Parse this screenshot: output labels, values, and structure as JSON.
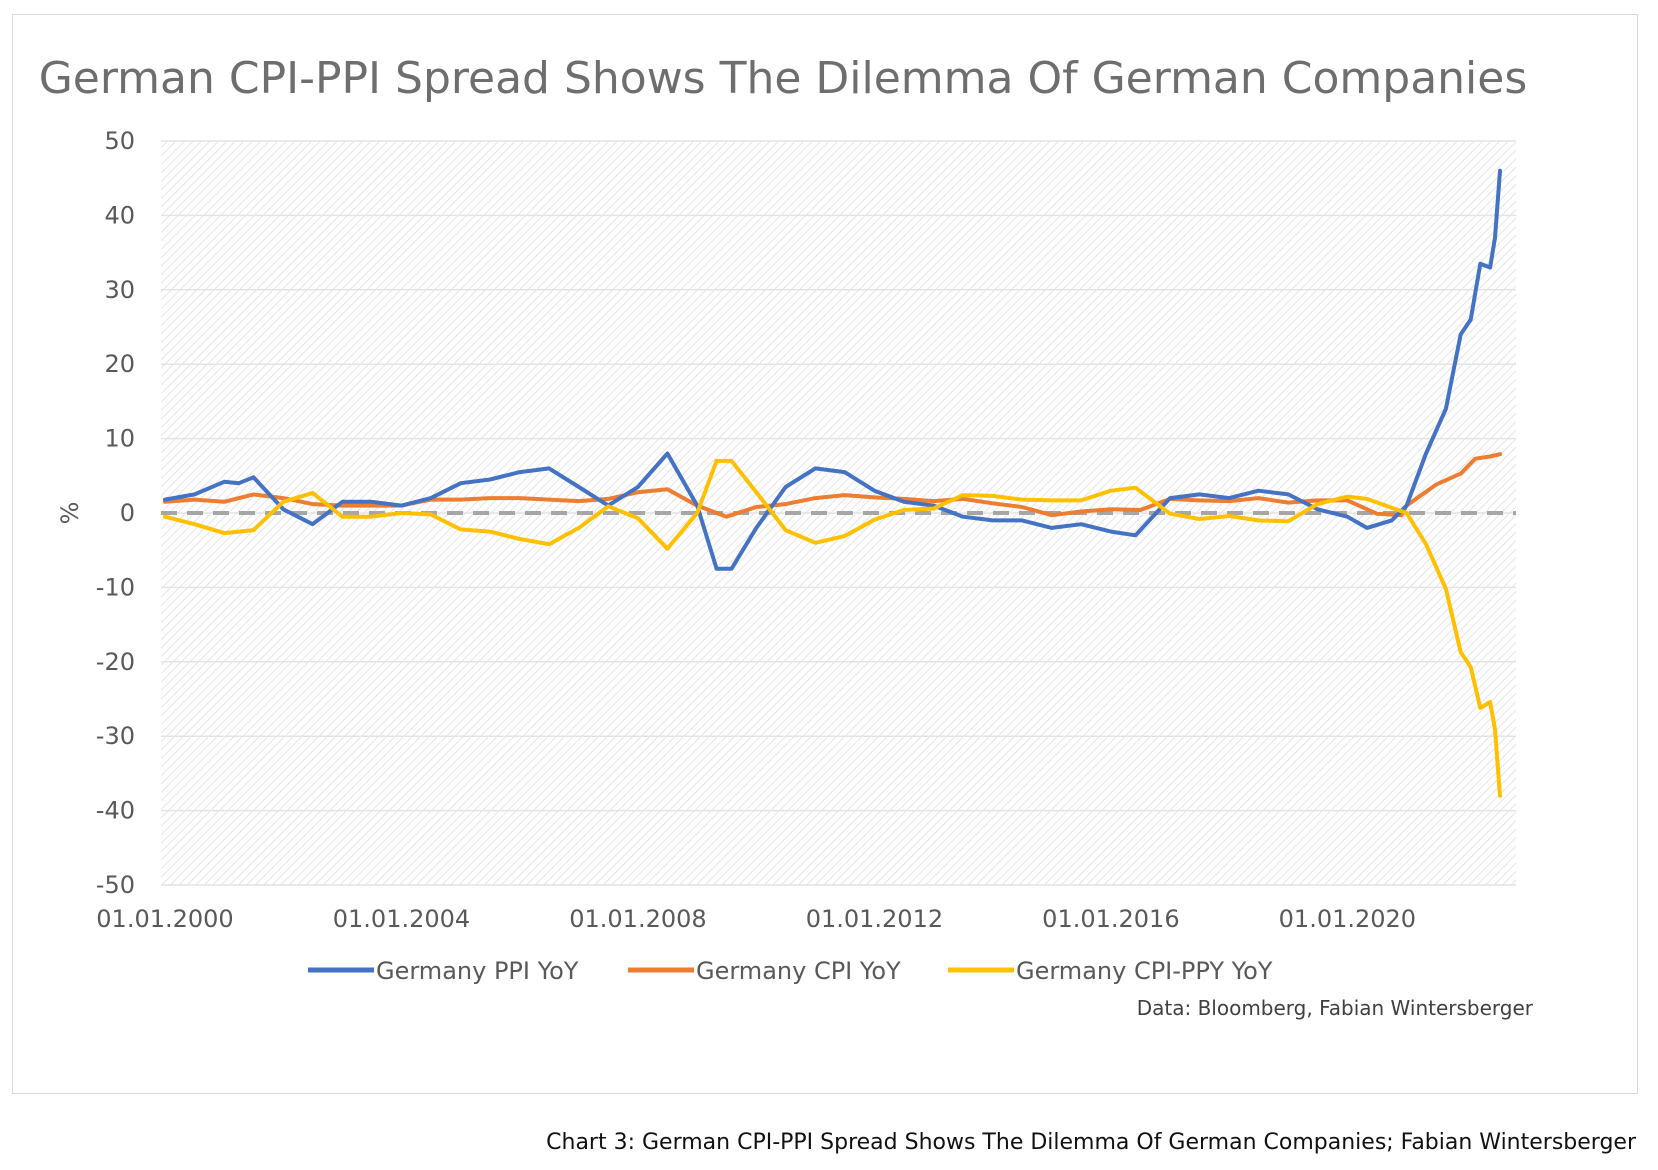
{
  "chart_data": {
    "type": "line",
    "title": "German CPI-PPI Spread Shows The Dilemma Of German Companies",
    "ylabel": "%",
    "xlabel": "",
    "ylim": [
      -50,
      50
    ],
    "yticks": [
      50,
      40,
      30,
      20,
      10,
      0,
      -10,
      -20,
      -30,
      -40,
      -50
    ],
    "xlim": [
      "2000-01-01",
      "2022-08-01"
    ],
    "xtick_labels": [
      "01.01.2000",
      "01.01.2004",
      "01.01.2008",
      "01.01.2012",
      "01.01.2016",
      "01.01.2020"
    ],
    "xtick_dates": [
      "2000-01-01",
      "2004-01-01",
      "2008-01-01",
      "2012-01-01",
      "2016-01-01",
      "2020-01-01"
    ],
    "grid": "hatched background, horizontal gridlines",
    "zero_line": "dashed grey",
    "legend_position": "bottom",
    "source": "Data: Bloomberg, Fabian Wintersberger",
    "series": [
      {
        "name": "Germany PPI YoY",
        "color": "#4472C4",
        "points": [
          [
            "2000-01-01",
            1.8
          ],
          [
            "2000-07-01",
            2.5
          ],
          [
            "2001-01-01",
            4.2
          ],
          [
            "2001-04-01",
            4.0
          ],
          [
            "2001-07-01",
            4.8
          ],
          [
            "2002-01-01",
            0.5
          ],
          [
            "2002-07-01",
            -1.5
          ],
          [
            "2003-01-01",
            1.5
          ],
          [
            "2003-07-01",
            1.5
          ],
          [
            "2004-01-01",
            1.0
          ],
          [
            "2004-07-01",
            2.0
          ],
          [
            "2005-01-01",
            4.0
          ],
          [
            "2005-07-01",
            4.5
          ],
          [
            "2006-01-01",
            5.5
          ],
          [
            "2006-07-01",
            6.0
          ],
          [
            "2007-01-01",
            3.5
          ],
          [
            "2007-07-01",
            1.0
          ],
          [
            "2008-01-01",
            3.5
          ],
          [
            "2008-07-01",
            8.0
          ],
          [
            "2009-01-01",
            1.0
          ],
          [
            "2009-05-01",
            -7.5
          ],
          [
            "2009-08-01",
            -7.5
          ],
          [
            "2010-01-01",
            -2.0
          ],
          [
            "2010-07-01",
            3.5
          ],
          [
            "2011-01-01",
            6.0
          ],
          [
            "2011-07-01",
            5.5
          ],
          [
            "2012-01-01",
            3.0
          ],
          [
            "2012-07-01",
            1.5
          ],
          [
            "2013-01-01",
            1.0
          ],
          [
            "2013-07-01",
            -0.5
          ],
          [
            "2014-01-01",
            -1.0
          ],
          [
            "2014-07-01",
            -1.0
          ],
          [
            "2015-01-01",
            -2.0
          ],
          [
            "2015-07-01",
            -1.5
          ],
          [
            "2016-01-01",
            -2.5
          ],
          [
            "2016-06-01",
            -3.0
          ],
          [
            "2017-01-01",
            2.0
          ],
          [
            "2017-07-01",
            2.5
          ],
          [
            "2018-01-01",
            2.0
          ],
          [
            "2018-07-01",
            3.0
          ],
          [
            "2019-01-01",
            2.5
          ],
          [
            "2019-07-01",
            0.5
          ],
          [
            "2020-01-01",
            -0.5
          ],
          [
            "2020-05-01",
            -2.0
          ],
          [
            "2020-10-01",
            -1.0
          ],
          [
            "2021-01-01",
            1.0
          ],
          [
            "2021-05-01",
            8.0
          ],
          [
            "2021-09-01",
            14.0
          ],
          [
            "2021-12-01",
            24.0
          ],
          [
            "2022-02-01",
            26.0
          ],
          [
            "2022-04-01",
            33.5
          ],
          [
            "2022-06-01",
            33.0
          ],
          [
            "2022-07-01",
            37.0
          ],
          [
            "2022-08-01",
            46.0
          ]
        ]
      },
      {
        "name": "Germany CPI YoY",
        "color": "#ED7D31",
        "points": [
          [
            "2000-01-01",
            1.5
          ],
          [
            "2000-07-01",
            1.8
          ],
          [
            "2001-01-01",
            1.5
          ],
          [
            "2001-07-01",
            2.5
          ],
          [
            "2002-01-01",
            2.0
          ],
          [
            "2002-07-01",
            1.2
          ],
          [
            "2003-01-01",
            1.0
          ],
          [
            "2003-07-01",
            1.0
          ],
          [
            "2004-01-01",
            1.0
          ],
          [
            "2004-07-01",
            1.8
          ],
          [
            "2005-01-01",
            1.8
          ],
          [
            "2005-07-01",
            2.0
          ],
          [
            "2006-01-01",
            2.0
          ],
          [
            "2006-07-01",
            1.8
          ],
          [
            "2007-01-01",
            1.6
          ],
          [
            "2007-07-01",
            1.9
          ],
          [
            "2008-01-01",
            2.8
          ],
          [
            "2008-07-01",
            3.2
          ],
          [
            "2009-01-01",
            1.0
          ],
          [
            "2009-07-01",
            -0.5
          ],
          [
            "2010-01-01",
            0.8
          ],
          [
            "2010-07-01",
            1.2
          ],
          [
            "2011-01-01",
            2.0
          ],
          [
            "2011-07-01",
            2.4
          ],
          [
            "2012-01-01",
            2.1
          ],
          [
            "2012-07-01",
            1.9
          ],
          [
            "2013-01-01",
            1.6
          ],
          [
            "2013-07-01",
            1.9
          ],
          [
            "2014-01-01",
            1.3
          ],
          [
            "2014-07-01",
            0.8
          ],
          [
            "2015-01-01",
            -0.3
          ],
          [
            "2015-07-01",
            0.2
          ],
          [
            "2016-01-01",
            0.5
          ],
          [
            "2016-07-01",
            0.4
          ],
          [
            "2017-01-01",
            1.9
          ],
          [
            "2017-07-01",
            1.7
          ],
          [
            "2018-01-01",
            1.6
          ],
          [
            "2018-07-01",
            2.0
          ],
          [
            "2019-01-01",
            1.4
          ],
          [
            "2019-07-01",
            1.7
          ],
          [
            "2020-01-01",
            1.7
          ],
          [
            "2020-07-01",
            -0.1
          ],
          [
            "2020-12-01",
            -0.3
          ],
          [
            "2021-01-01",
            1.0
          ],
          [
            "2021-07-01",
            3.8
          ],
          [
            "2021-12-01",
            5.3
          ],
          [
            "2022-03-01",
            7.3
          ],
          [
            "2022-06-01",
            7.6
          ],
          [
            "2022-08-01",
            7.9
          ]
        ]
      },
      {
        "name": "Germany CPI-PPY YoY",
        "color": "#FFC000",
        "points": [
          [
            "2000-01-01",
            -0.5
          ],
          [
            "2000-07-01",
            -1.5
          ],
          [
            "2001-01-01",
            -2.7
          ],
          [
            "2001-04-01",
            -2.5
          ],
          [
            "2001-07-01",
            -2.3
          ],
          [
            "2002-01-01",
            1.5
          ],
          [
            "2002-07-01",
            2.7
          ],
          [
            "2003-01-01",
            -0.5
          ],
          [
            "2003-07-01",
            -0.5
          ],
          [
            "2004-01-01",
            0.0
          ],
          [
            "2004-07-01",
            -0.2
          ],
          [
            "2005-01-01",
            -2.2
          ],
          [
            "2005-07-01",
            -2.5
          ],
          [
            "2006-01-01",
            -3.5
          ],
          [
            "2006-07-01",
            -4.2
          ],
          [
            "2007-01-01",
            -2.0
          ],
          [
            "2007-07-01",
            0.9
          ],
          [
            "2008-01-01",
            -0.7
          ],
          [
            "2008-07-01",
            -4.8
          ],
          [
            "2009-01-01",
            0.0
          ],
          [
            "2009-05-01",
            7.0
          ],
          [
            "2009-08-01",
            7.0
          ],
          [
            "2010-01-01",
            2.8
          ],
          [
            "2010-07-01",
            -2.3
          ],
          [
            "2011-01-01",
            -4.0
          ],
          [
            "2011-07-01",
            -3.1
          ],
          [
            "2012-01-01",
            -0.9
          ],
          [
            "2012-07-01",
            0.4
          ],
          [
            "2013-01-01",
            0.6
          ],
          [
            "2013-07-01",
            2.4
          ],
          [
            "2014-01-01",
            2.3
          ],
          [
            "2014-07-01",
            1.8
          ],
          [
            "2015-01-01",
            1.7
          ],
          [
            "2015-07-01",
            1.7
          ],
          [
            "2016-01-01",
            3.0
          ],
          [
            "2016-06-01",
            3.4
          ],
          [
            "2017-01-01",
            -0.1
          ],
          [
            "2017-07-01",
            -0.8
          ],
          [
            "2018-01-01",
            -0.4
          ],
          [
            "2018-07-01",
            -1.0
          ],
          [
            "2019-01-01",
            -1.1
          ],
          [
            "2019-07-01",
            1.2
          ],
          [
            "2020-01-01",
            2.2
          ],
          [
            "2020-05-01",
            1.9
          ],
          [
            "2020-10-01",
            0.7
          ],
          [
            "2021-01-01",
            0.0
          ],
          [
            "2021-05-01",
            -4.2
          ],
          [
            "2021-09-01",
            -10.2
          ],
          [
            "2021-12-01",
            -18.7
          ],
          [
            "2022-02-01",
            -20.7
          ],
          [
            "2022-04-01",
            -26.2
          ],
          [
            "2022-06-01",
            -25.4
          ],
          [
            "2022-07-01",
            -29.1
          ],
          [
            "2022-08-01",
            -38.0
          ]
        ]
      }
    ]
  },
  "caption": "Chart 3: German CPI-PPI  Spread Shows The Dilemma Of German Companies; Fabian Wintersberger"
}
